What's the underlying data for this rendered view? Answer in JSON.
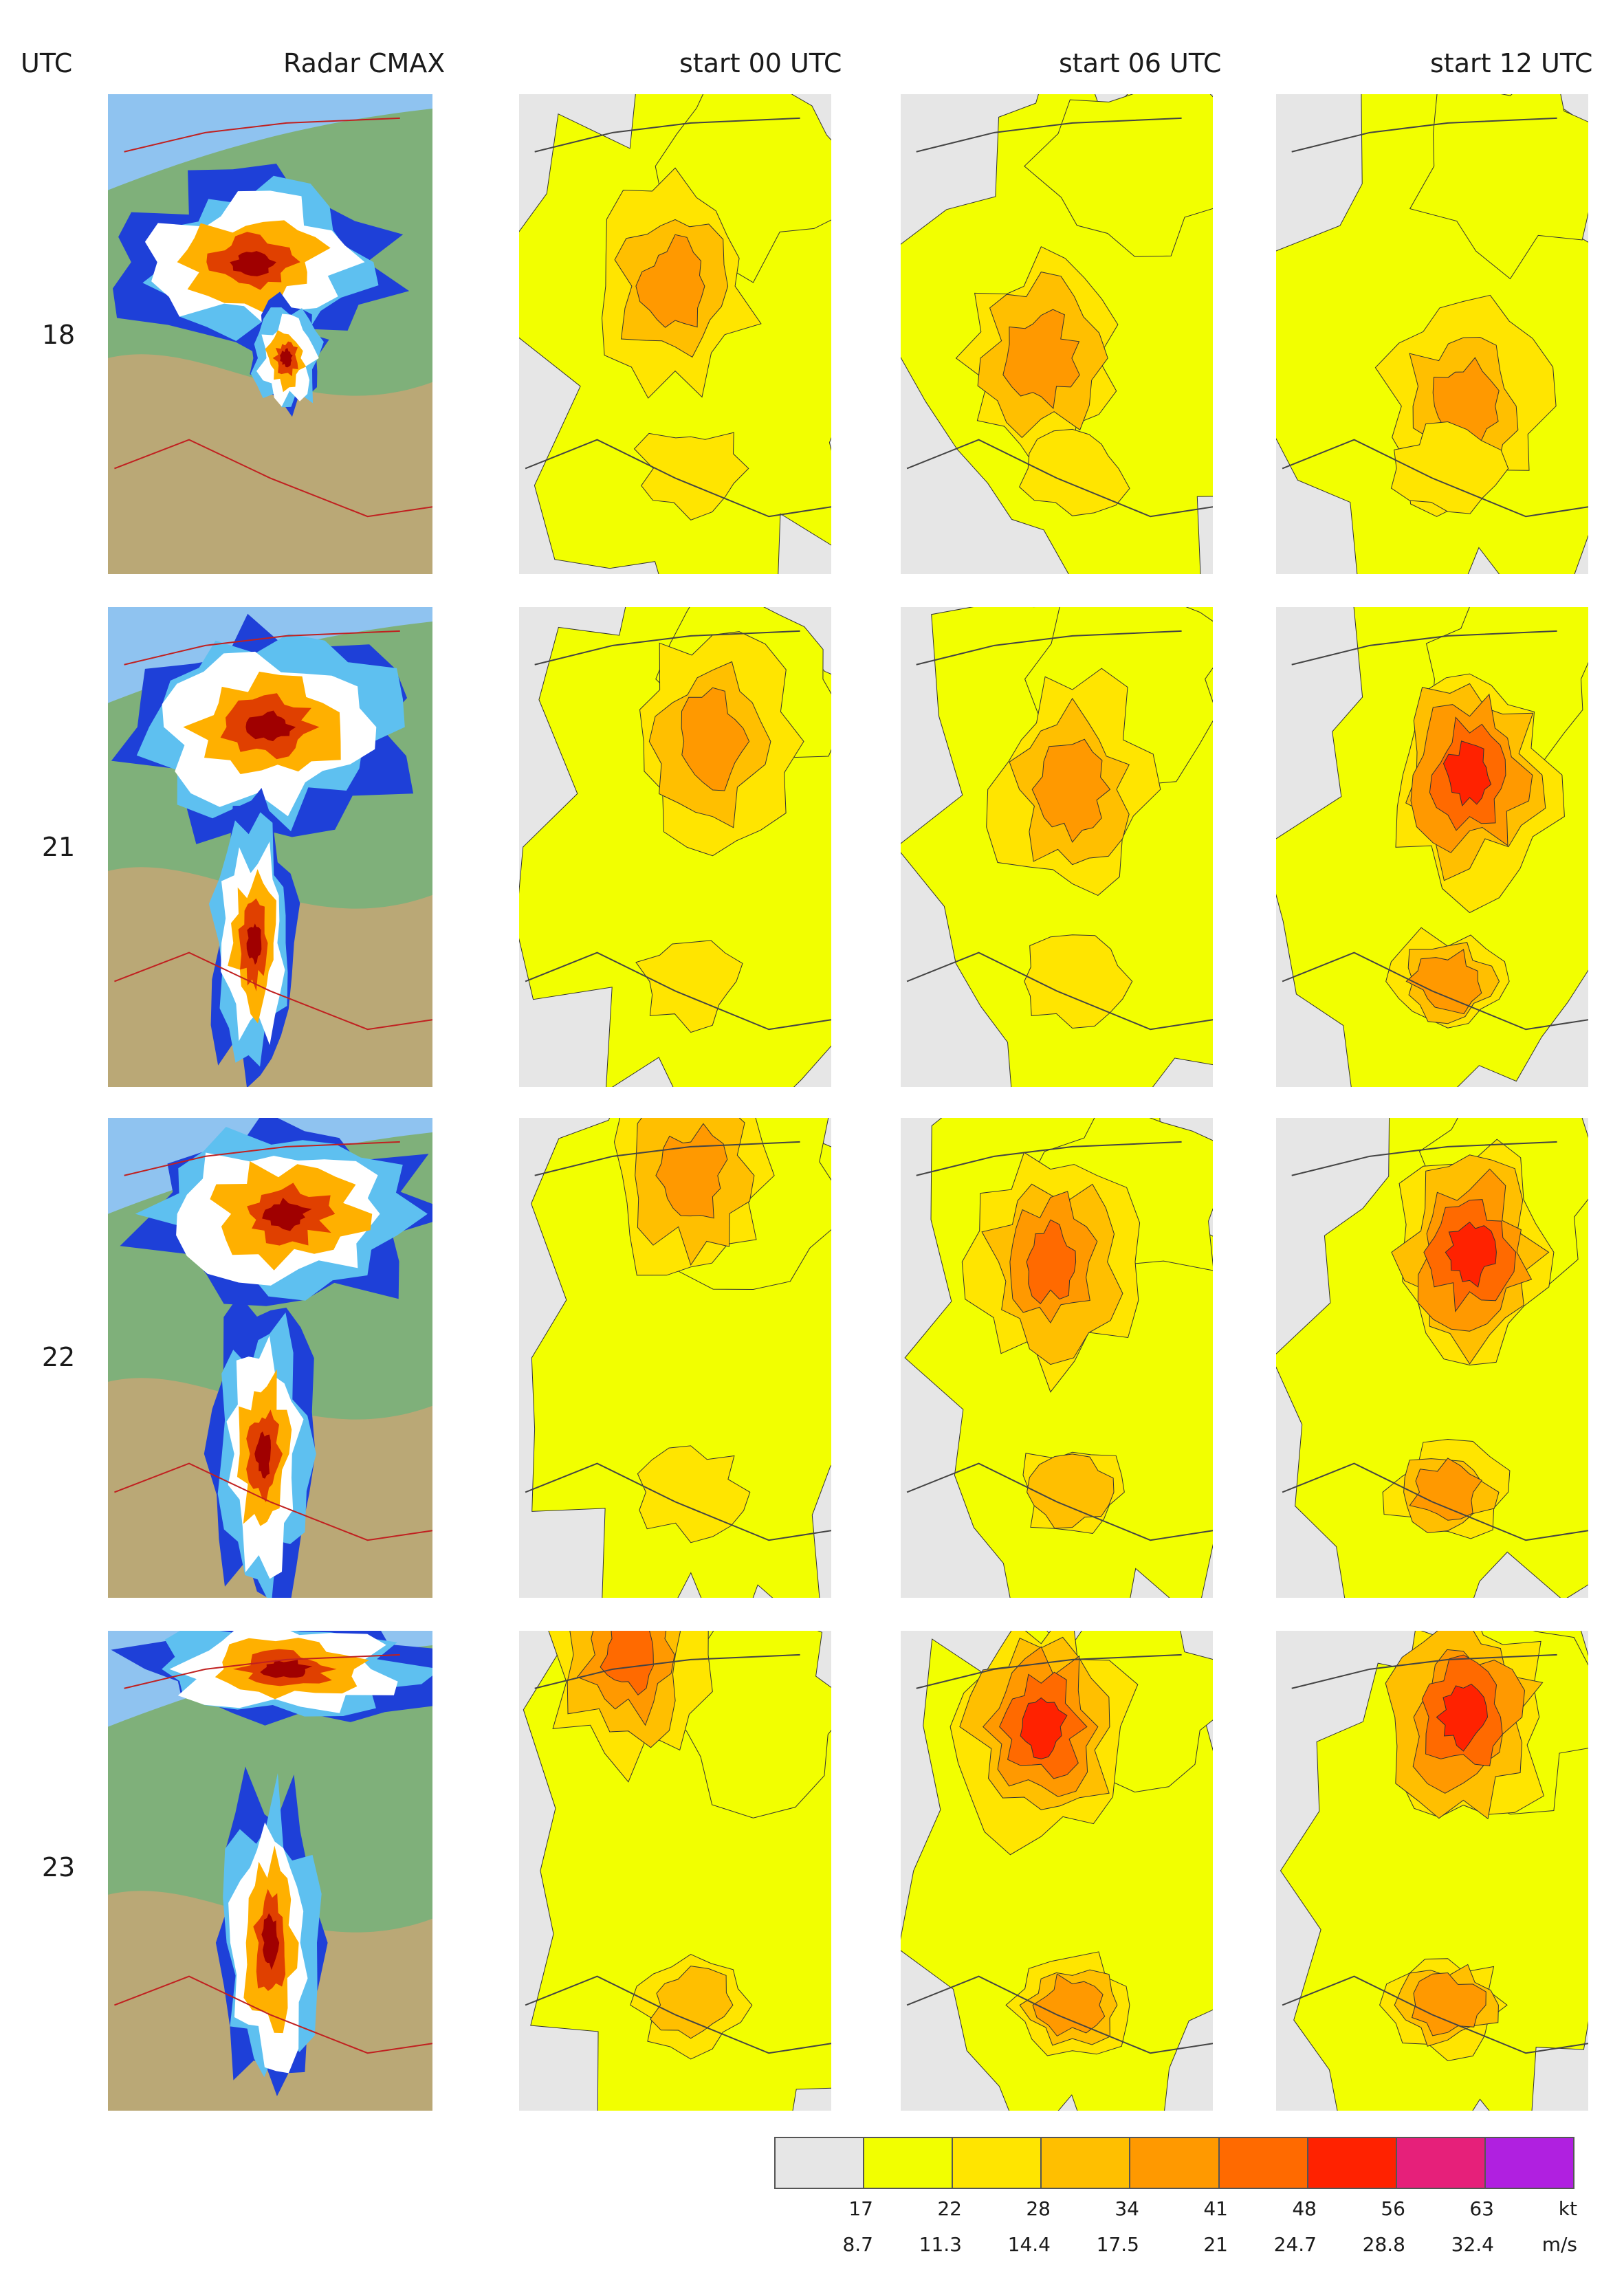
{
  "headers": {
    "utc": "UTC",
    "radar": "Radar CMAX",
    "start00": "start 00 UTC",
    "start06": "start 06 UTC",
    "start12": "start 12 UTC"
  },
  "rows": [
    "18",
    "21",
    "22",
    "23"
  ],
  "legend": {
    "kt_values": [
      "17",
      "22",
      "28",
      "34",
      "41",
      "48",
      "56",
      "63"
    ],
    "kt_unit": "kt",
    "ms_values": [
      "8.7",
      "11.3",
      "14.4",
      "17.5",
      "21",
      "24.7",
      "28.8",
      "32.4"
    ],
    "ms_unit": "m/s",
    "colors": [
      "#e6e6e6",
      "#f2ff00",
      "#ffe500",
      "#ffbf00",
      "#ff9900",
      "#ff6a00",
      "#ff2200",
      "#e6207a",
      "#b020e0"
    ]
  }
}
